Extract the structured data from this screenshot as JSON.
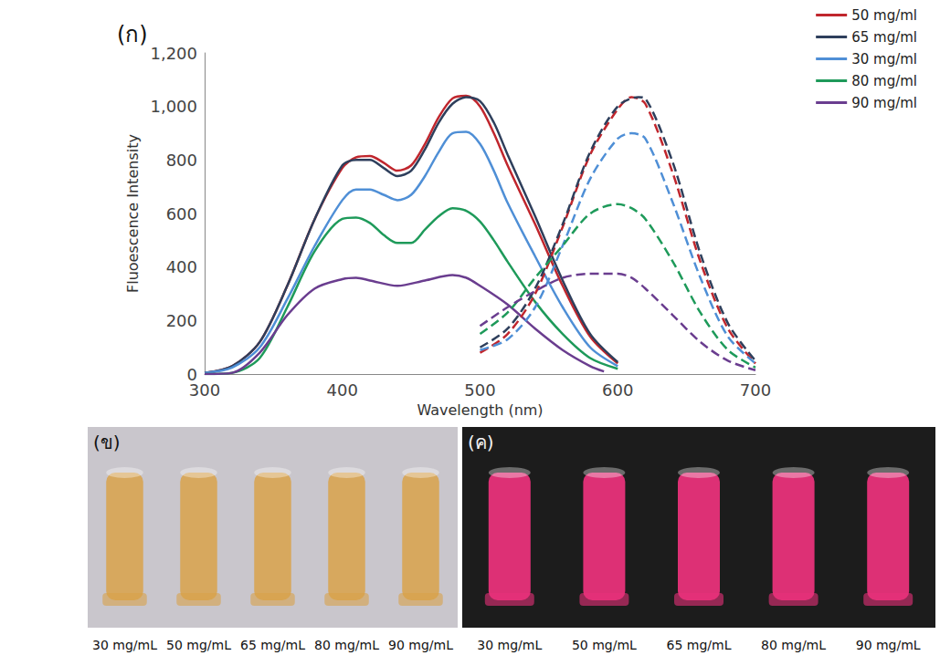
{
  "chart_data": {
    "type": "line",
    "panel_label": "(ก)",
    "x_label": "Wavelength (nm)",
    "y_label": "Fluoescence Intensity",
    "xlim": [
      300,
      700
    ],
    "xticks": [
      300,
      400,
      500,
      600,
      700
    ],
    "ylim": [
      0,
      1200
    ],
    "yticks": [
      0,
      200,
      400,
      600,
      800,
      1000,
      1200
    ],
    "grid": false,
    "legend": "upper right",
    "series": [
      {
        "name": "50 mg/ml",
        "color": "#c0262d",
        "line_style": "solid",
        "x": [
          300,
          320,
          340,
          360,
          380,
          400,
          410,
          420,
          430,
          440,
          450,
          460,
          470,
          480,
          490,
          500,
          510,
          520,
          540,
          560,
          580,
          600
        ],
        "values": [
          5,
          30,
          120,
          330,
          580,
          770,
          810,
          815,
          790,
          760,
          780,
          860,
          960,
          1030,
          1040,
          1000,
          900,
          780,
          560,
          330,
          140,
          40
        ]
      },
      {
        "name": "65 mg/ml",
        "color": "#2e3f5c",
        "line_style": "solid",
        "x": [
          300,
          320,
          340,
          360,
          380,
          400,
          410,
          420,
          430,
          440,
          450,
          460,
          470,
          480,
          490,
          500,
          510,
          520,
          540,
          560,
          580,
          600
        ],
        "values": [
          5,
          30,
          120,
          330,
          580,
          780,
          800,
          800,
          770,
          740,
          760,
          840,
          940,
          1010,
          1035,
          1020,
          940,
          820,
          590,
          350,
          150,
          45
        ]
      },
      {
        "name": "30 mg/ml",
        "color": "#4f8fd6",
        "line_style": "solid",
        "x": [
          300,
          320,
          340,
          360,
          380,
          400,
          410,
          420,
          430,
          440,
          450,
          460,
          470,
          480,
          490,
          500,
          510,
          520,
          540,
          560,
          580,
          600
        ],
        "values": [
          5,
          25,
          100,
          280,
          480,
          650,
          690,
          690,
          670,
          650,
          670,
          740,
          830,
          900,
          905,
          860,
          760,
          640,
          440,
          250,
          100,
          30
        ]
      },
      {
        "name": "80 mg/ml",
        "color": "#1e9a5a",
        "line_style": "solid",
        "x": [
          300,
          320,
          340,
          360,
          380,
          400,
          410,
          420,
          430,
          440,
          450,
          460,
          470,
          480,
          490,
          500,
          510,
          520,
          540,
          560,
          580,
          600
        ],
        "values": [
          0,
          5,
          60,
          250,
          460,
          580,
          585,
          565,
          520,
          490,
          490,
          540,
          590,
          620,
          610,
          570,
          500,
          420,
          270,
          150,
          60,
          20
        ]
      },
      {
        "name": "90 mg/ml",
        "color": "#6a3d8f",
        "line_style": "solid",
        "x": [
          300,
          320,
          340,
          360,
          380,
          400,
          410,
          420,
          440,
          460,
          480,
          490,
          500,
          520,
          540,
          560,
          580,
          590
        ],
        "values": [
          0,
          5,
          80,
          220,
          320,
          355,
          360,
          350,
          330,
          350,
          370,
          360,
          330,
          260,
          170,
          90,
          30,
          10
        ]
      },
      {
        "name": "50 mg/ml",
        "color": "#c0262d",
        "line_style": "dashed",
        "x": [
          500,
          520,
          540,
          560,
          580,
          600,
          610,
          620,
          640,
          660,
          680,
          700
        ],
        "values": [
          80,
          150,
          300,
          550,
          820,
          990,
          1035,
          1010,
          750,
          420,
          170,
          40
        ]
      },
      {
        "name": "65 mg/ml",
        "color": "#2e3f5c",
        "line_style": "dashed",
        "x": [
          500,
          520,
          540,
          560,
          580,
          600,
          615,
          620,
          640,
          660,
          680,
          700
        ],
        "values": [
          100,
          170,
          320,
          560,
          830,
          1000,
          1035,
          1030,
          790,
          450,
          190,
          50
        ]
      },
      {
        "name": "30 mg/ml",
        "color": "#4f8fd6",
        "line_style": "dashed",
        "x": [
          500,
          520,
          540,
          560,
          580,
          600,
          610,
          620,
          640,
          660,
          680,
          700
        ],
        "values": [
          90,
          130,
          250,
          480,
          730,
          880,
          900,
          880,
          640,
          360,
          140,
          40
        ]
      },
      {
        "name": "80 mg/ml",
        "color": "#1e9a5a",
        "line_style": "dashed",
        "x": [
          500,
          520,
          540,
          560,
          580,
          600,
          610,
          620,
          640,
          660,
          680,
          700
        ],
        "values": [
          150,
          230,
          360,
          480,
          600,
          635,
          620,
          580,
          420,
          230,
          90,
          25
        ]
      },
      {
        "name": "90 mg/ml",
        "color": "#6a3d8f",
        "line_style": "dashed",
        "x": [
          500,
          520,
          540,
          560,
          580,
          600,
          610,
          620,
          640,
          660,
          680,
          700
        ],
        "values": [
          180,
          250,
          310,
          360,
          375,
          375,
          360,
          320,
          220,
          120,
          50,
          15
        ]
      }
    ]
  },
  "photo_panels": [
    {
      "label": "(ข)",
      "color": "#d9a24a",
      "captions": [
        "30 mg/mL",
        "50 mg/mL",
        "65 mg/mL",
        "80 mg/mL",
        "90 mg/mL"
      ]
    },
    {
      "label": "(ค)",
      "color": "#e8317a",
      "captions": [
        "30 mg/mL",
        "50 mg/mL",
        "65 mg/mL",
        "80 mg/mL",
        "90 mg/mL"
      ]
    }
  ]
}
